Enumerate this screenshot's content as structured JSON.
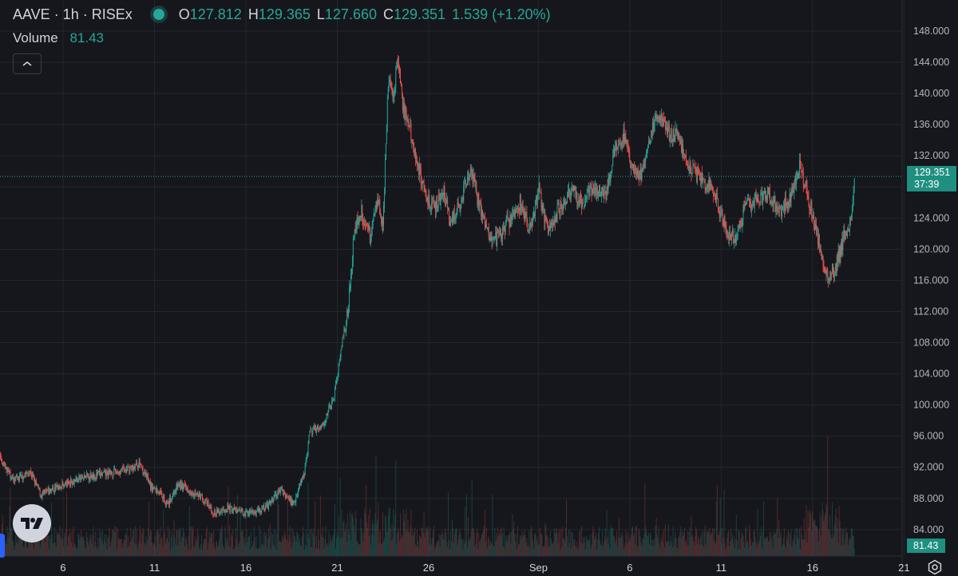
{
  "header": {
    "symbol": "AAVE · 1h · RISEx",
    "open_key": "O",
    "open": "127.812",
    "high_key": "H",
    "high": "129.365",
    "low_key": "L",
    "low": "127.660",
    "close_key": "C",
    "close": "129.351",
    "change": "1.539 (+1.20%)"
  },
  "volume_legend": {
    "label": "Volume",
    "value": "81.43"
  },
  "price_tag": {
    "price": "129.351",
    "countdown": "37:39"
  },
  "volume_tag": "81.43",
  "colors": {
    "up": "#26a69a",
    "down": "#ef5350",
    "background": "#16171c",
    "grid": "#24262d"
  },
  "icons": [
    "chevron-up-icon",
    "tradingview-logo-icon",
    "gear-icon"
  ],
  "chart_data": {
    "type": "candlestick",
    "interval": "1h",
    "y_axis": {
      "position": "right",
      "ylim": [
        80.6,
        152
      ],
      "ticks": [
        "148.000",
        "144.000",
        "140.000",
        "136.000",
        "132.000",
        "128.000",
        "124.000",
        "120.000",
        "116.000",
        "112.000",
        "108.000",
        "104.000",
        "100.000",
        "96.000",
        "92.000",
        "88.000",
        "84.000"
      ]
    },
    "x_axis": {
      "ticks": [
        "6",
        "11",
        "16",
        "21",
        "26",
        "Sep",
        "6",
        "11",
        "16",
        "21"
      ],
      "tick_days": [
        6,
        11,
        16,
        21,
        26,
        32,
        37,
        42,
        47,
        52
      ]
    },
    "last_price": 129.351,
    "price_path": [
      {
        "day": 1.2,
        "price": 93.5
      },
      {
        "day": 1.8,
        "price": 92.6
      },
      {
        "day": 2.5,
        "price": 93.4
      },
      {
        "day": 3.3,
        "price": 90.2
      },
      {
        "day": 4.2,
        "price": 91.4
      },
      {
        "day": 4.8,
        "price": 88.4
      },
      {
        "day": 5.8,
        "price": 89.6
      },
      {
        "day": 6.7,
        "price": 90.4
      },
      {
        "day": 7.6,
        "price": 91.0
      },
      {
        "day": 8.5,
        "price": 91.2
      },
      {
        "day": 9.7,
        "price": 91.8
      },
      {
        "day": 10.2,
        "price": 92.5
      },
      {
        "day": 10.8,
        "price": 89.5
      },
      {
        "day": 11.4,
        "price": 88.6
      },
      {
        "day": 11.7,
        "price": 87.2
      },
      {
        "day": 12.3,
        "price": 89.8
      },
      {
        "day": 13.0,
        "price": 89.0
      },
      {
        "day": 13.6,
        "price": 88.0
      },
      {
        "day": 14.3,
        "price": 86.0
      },
      {
        "day": 15.0,
        "price": 86.8
      },
      {
        "day": 15.6,
        "price": 86.3
      },
      {
        "day": 16.4,
        "price": 86.2
      },
      {
        "day": 17.2,
        "price": 87.0
      },
      {
        "day": 17.9,
        "price": 89.2
      },
      {
        "day": 18.6,
        "price": 87.3
      },
      {
        "day": 19.2,
        "price": 91.5
      },
      {
        "day": 19.5,
        "price": 96.5
      },
      {
        "day": 20.2,
        "price": 97.5
      },
      {
        "day": 20.8,
        "price": 100.8
      },
      {
        "day": 21.3,
        "price": 108.5
      },
      {
        "day": 21.6,
        "price": 112.5
      },
      {
        "day": 21.9,
        "price": 122.0
      },
      {
        "day": 22.3,
        "price": 125.0
      },
      {
        "day": 22.8,
        "price": 121.5
      },
      {
        "day": 23.2,
        "price": 127.0
      },
      {
        "day": 23.5,
        "price": 123.0
      },
      {
        "day": 23.8,
        "price": 142.0
      },
      {
        "day": 24.1,
        "price": 140.0
      },
      {
        "day": 24.3,
        "price": 144.5
      },
      {
        "day": 24.6,
        "price": 138.0
      },
      {
        "day": 24.9,
        "price": 136.0
      },
      {
        "day": 25.3,
        "price": 132.0
      },
      {
        "day": 25.7,
        "price": 128.0
      },
      {
        "day": 26.2,
        "price": 125.0
      },
      {
        "day": 26.8,
        "price": 127.5
      },
      {
        "day": 27.2,
        "price": 123.0
      },
      {
        "day": 27.7,
        "price": 126.0
      },
      {
        "day": 28.3,
        "price": 130.0
      },
      {
        "day": 28.9,
        "price": 124.5
      },
      {
        "day": 29.6,
        "price": 121.0
      },
      {
        "day": 30.4,
        "price": 123.5
      },
      {
        "day": 31.0,
        "price": 126.0
      },
      {
        "day": 31.6,
        "price": 122.0
      },
      {
        "day": 32.0,
        "price": 128.0
      },
      {
        "day": 32.5,
        "price": 122.5
      },
      {
        "day": 33.1,
        "price": 125.0
      },
      {
        "day": 33.8,
        "price": 127.5
      },
      {
        "day": 34.4,
        "price": 126.0
      },
      {
        "day": 35.0,
        "price": 128.0
      },
      {
        "day": 35.7,
        "price": 127.0
      },
      {
        "day": 36.2,
        "price": 133.0
      },
      {
        "day": 36.7,
        "price": 134.5
      },
      {
        "day": 37.1,
        "price": 130.0
      },
      {
        "day": 37.6,
        "price": 129.5
      },
      {
        "day": 38.2,
        "price": 135.0
      },
      {
        "day": 38.6,
        "price": 137.5
      },
      {
        "day": 39.1,
        "price": 135.0
      },
      {
        "day": 39.6,
        "price": 134.5
      },
      {
        "day": 40.2,
        "price": 131.0
      },
      {
        "day": 40.9,
        "price": 129.0
      },
      {
        "day": 41.6,
        "price": 127.5
      },
      {
        "day": 42.0,
        "price": 124.0
      },
      {
        "day": 42.4,
        "price": 122.0
      },
      {
        "day": 42.8,
        "price": 121.0
      },
      {
        "day": 43.3,
        "price": 125.5
      },
      {
        "day": 43.9,
        "price": 126.5
      },
      {
        "day": 44.6,
        "price": 127.0
      },
      {
        "day": 45.2,
        "price": 125.0
      },
      {
        "day": 45.8,
        "price": 126.5
      },
      {
        "day": 46.3,
        "price": 131.0
      },
      {
        "day": 46.7,
        "price": 127.0
      },
      {
        "day": 47.0,
        "price": 124.5
      },
      {
        "day": 47.5,
        "price": 119.0
      },
      {
        "day": 47.9,
        "price": 116.5
      },
      {
        "day": 48.3,
        "price": 118.0
      },
      {
        "day": 48.7,
        "price": 121.5
      },
      {
        "day": 49.1,
        "price": 123.5
      },
      {
        "day": 49.3,
        "price": 129.351
      }
    ],
    "volume": {
      "max_units": 150,
      "current": 81.43
    }
  }
}
